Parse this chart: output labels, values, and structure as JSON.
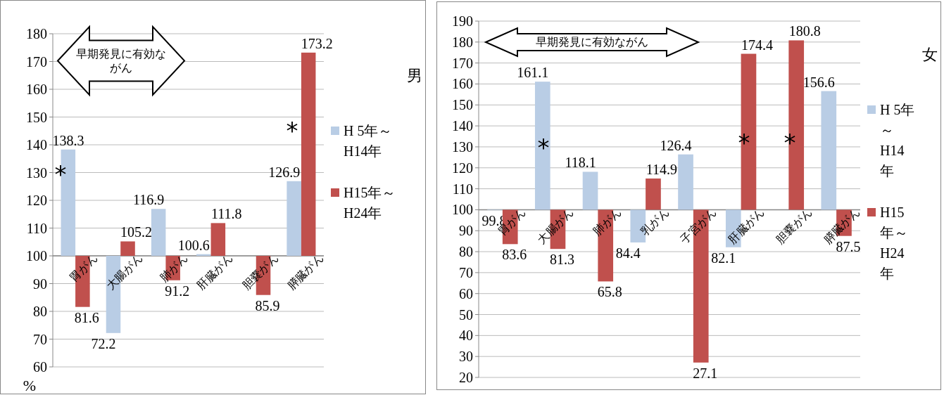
{
  "chart_data": [
    {
      "type": "bar",
      "legend_title": "男",
      "ylabel": "%",
      "categories": [
        "胃がん",
        "大腸がん",
        "肺がん",
        "肝臓がん",
        "胆嚢がん",
        "膵臓がん"
      ],
      "series": [
        {
          "name": "H 5年～H14年",
          "color": "#b9cde5",
          "base": [
            100,
            100,
            100,
            100,
            null,
            100
          ],
          "values": [
            38.3,
            -27.8,
            16.9,
            0.6,
            null,
            26.9
          ],
          "value_labels": [
            "138.3",
            "72.2",
            "116.9",
            "100.6",
            null,
            "126.9"
          ]
        },
        {
          "name": "H15年～H24年",
          "color": "#c0504d",
          "base": [
            100,
            100,
            100,
            100,
            100,
            100
          ],
          "values": [
            -18.4,
            5.2,
            -8.8,
            11.8,
            -14.1,
            73.2
          ],
          "value_labels": [
            "81.6",
            "105.2",
            "91.2",
            "111.8",
            "85.9",
            "173.2"
          ]
        }
      ],
      "ylim": [
        60,
        180
      ],
      "yticks": [
        60,
        70,
        80,
        90,
        100,
        110,
        120,
        130,
        140,
        150,
        160,
        170,
        180
      ],
      "grid": "y",
      "legend": "right",
      "annotations": [
        "早期発見に有効ながん",
        "*",
        "*"
      ]
    },
    {
      "type": "bar",
      "legend_title": "女",
      "categories": [
        "胃がん",
        "大腸がん",
        "肺がん",
        "乳がん",
        "子宮がん",
        "肝臓がん",
        "胆嚢がん",
        "膵臓がん"
      ],
      "series": [
        {
          "name": "H 5年～H14年",
          "color": "#b9cde5",
          "base": [
            100,
            100,
            100,
            100,
            100,
            100,
            null,
            100
          ],
          "values": [
            -0.2,
            61.1,
            18.1,
            -15.6,
            26.4,
            -17.9,
            null,
            56.6
          ],
          "value_labels": [
            "99.8",
            "161.1",
            "118.1",
            "84.4",
            "126.4",
            "82.1",
            null,
            "156.6"
          ]
        },
        {
          "name": "H15年～H24年",
          "color": "#c0504d",
          "base": [
            100,
            100,
            100,
            100,
            100,
            100,
            100,
            100
          ],
          "values": [
            -16.4,
            -18.7,
            -34.2,
            14.9,
            -72.9,
            74.4,
            80.8,
            -12.5
          ],
          "value_labels": [
            "83.6",
            "81.3",
            "65.8",
            "114.9",
            "27.1",
            "174.4",
            "180.8",
            "87.5"
          ]
        }
      ],
      "ylim": [
        20,
        190
      ],
      "yticks": [
        20,
        30,
        40,
        50,
        60,
        70,
        80,
        90,
        100,
        110,
        120,
        130,
        140,
        150,
        160,
        170,
        180,
        190
      ],
      "grid": "y",
      "legend": "right",
      "annotations": [
        "早期発見に有効ながん",
        "*",
        "*",
        "*"
      ]
    }
  ]
}
